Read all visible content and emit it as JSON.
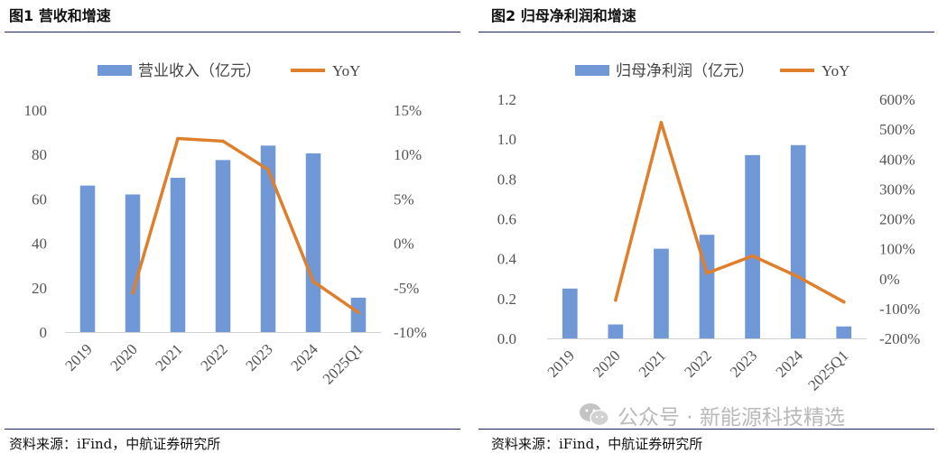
{
  "left": {
    "title": "图1  营收和增速",
    "source": "资料来源：iFind，中航证券研究所"
  },
  "right": {
    "title": "图2  归母净利润和增速",
    "source": "资料来源：iFind，中航证券研究所"
  },
  "watermark": {
    "text": "公众号 · 新能源科技精选",
    "icon": "wechat-icon"
  },
  "colors": {
    "bar": "#7098d6",
    "line": "#e07f2b",
    "rule": "#1a2c5a",
    "axis_text": "#555555"
  },
  "chart_data": [
    {
      "type": "bar",
      "title": "营收和增速",
      "categories": [
        "2019",
        "2020",
        "2021",
        "2022",
        "2023",
        "2024",
        "2025Q1"
      ],
      "series": [
        {
          "name": "营业收入（亿元）",
          "type": "bar",
          "axis": "left",
          "values": [
            66,
            62,
            69.5,
            77.5,
            84,
            80.5,
            15.5
          ]
        },
        {
          "name": "YoY",
          "type": "line",
          "axis": "right",
          "values": [
            null,
            -5.6,
            11.8,
            11.5,
            8.3,
            -4.3,
            -7.8
          ]
        }
      ],
      "left_axis": {
        "min": 0,
        "max": 100,
        "ticks": [
          0,
          20,
          40,
          60,
          80,
          100
        ],
        "tick_labels": [
          "0",
          "20",
          "40",
          "60",
          "80",
          "100"
        ]
      },
      "right_axis": {
        "min": -10,
        "max": 15,
        "ticks": [
          -10,
          -5,
          0,
          5,
          10,
          15
        ],
        "tick_labels": [
          "-10%",
          "-5%",
          "0%",
          "5%",
          "10%",
          "15%"
        ]
      },
      "legend": "top",
      "grid": false
    },
    {
      "type": "bar",
      "title": "归母净利润和增速",
      "categories": [
        "2019",
        "2020",
        "2021",
        "2022",
        "2023",
        "2024",
        "2025Q1"
      ],
      "series": [
        {
          "name": "归母净利润（亿元）",
          "type": "bar",
          "axis": "left",
          "values": [
            0.25,
            0.07,
            0.45,
            0.52,
            0.92,
            0.97,
            0.06
          ]
        },
        {
          "name": "YoY",
          "type": "line",
          "axis": "right",
          "values": [
            null,
            -72,
            522,
            18,
            76,
            6,
            -78
          ]
        }
      ],
      "left_axis": {
        "min": 0,
        "max": 1.2,
        "ticks": [
          0,
          0.2,
          0.4,
          0.6,
          0.8,
          1.0,
          1.2
        ],
        "tick_labels": [
          "0.0",
          "0.2",
          "0.4",
          "0.6",
          "0.8",
          "1.0",
          "1.2"
        ]
      },
      "right_axis": {
        "min": -200,
        "max": 600,
        "ticks": [
          -200,
          -100,
          0,
          100,
          200,
          300,
          400,
          500,
          600
        ],
        "tick_labels": [
          "-200%",
          "-100%",
          "0%",
          "100%",
          "200%",
          "300%",
          "400%",
          "500%",
          "600%"
        ]
      },
      "legend": "top",
      "grid": false
    }
  ]
}
